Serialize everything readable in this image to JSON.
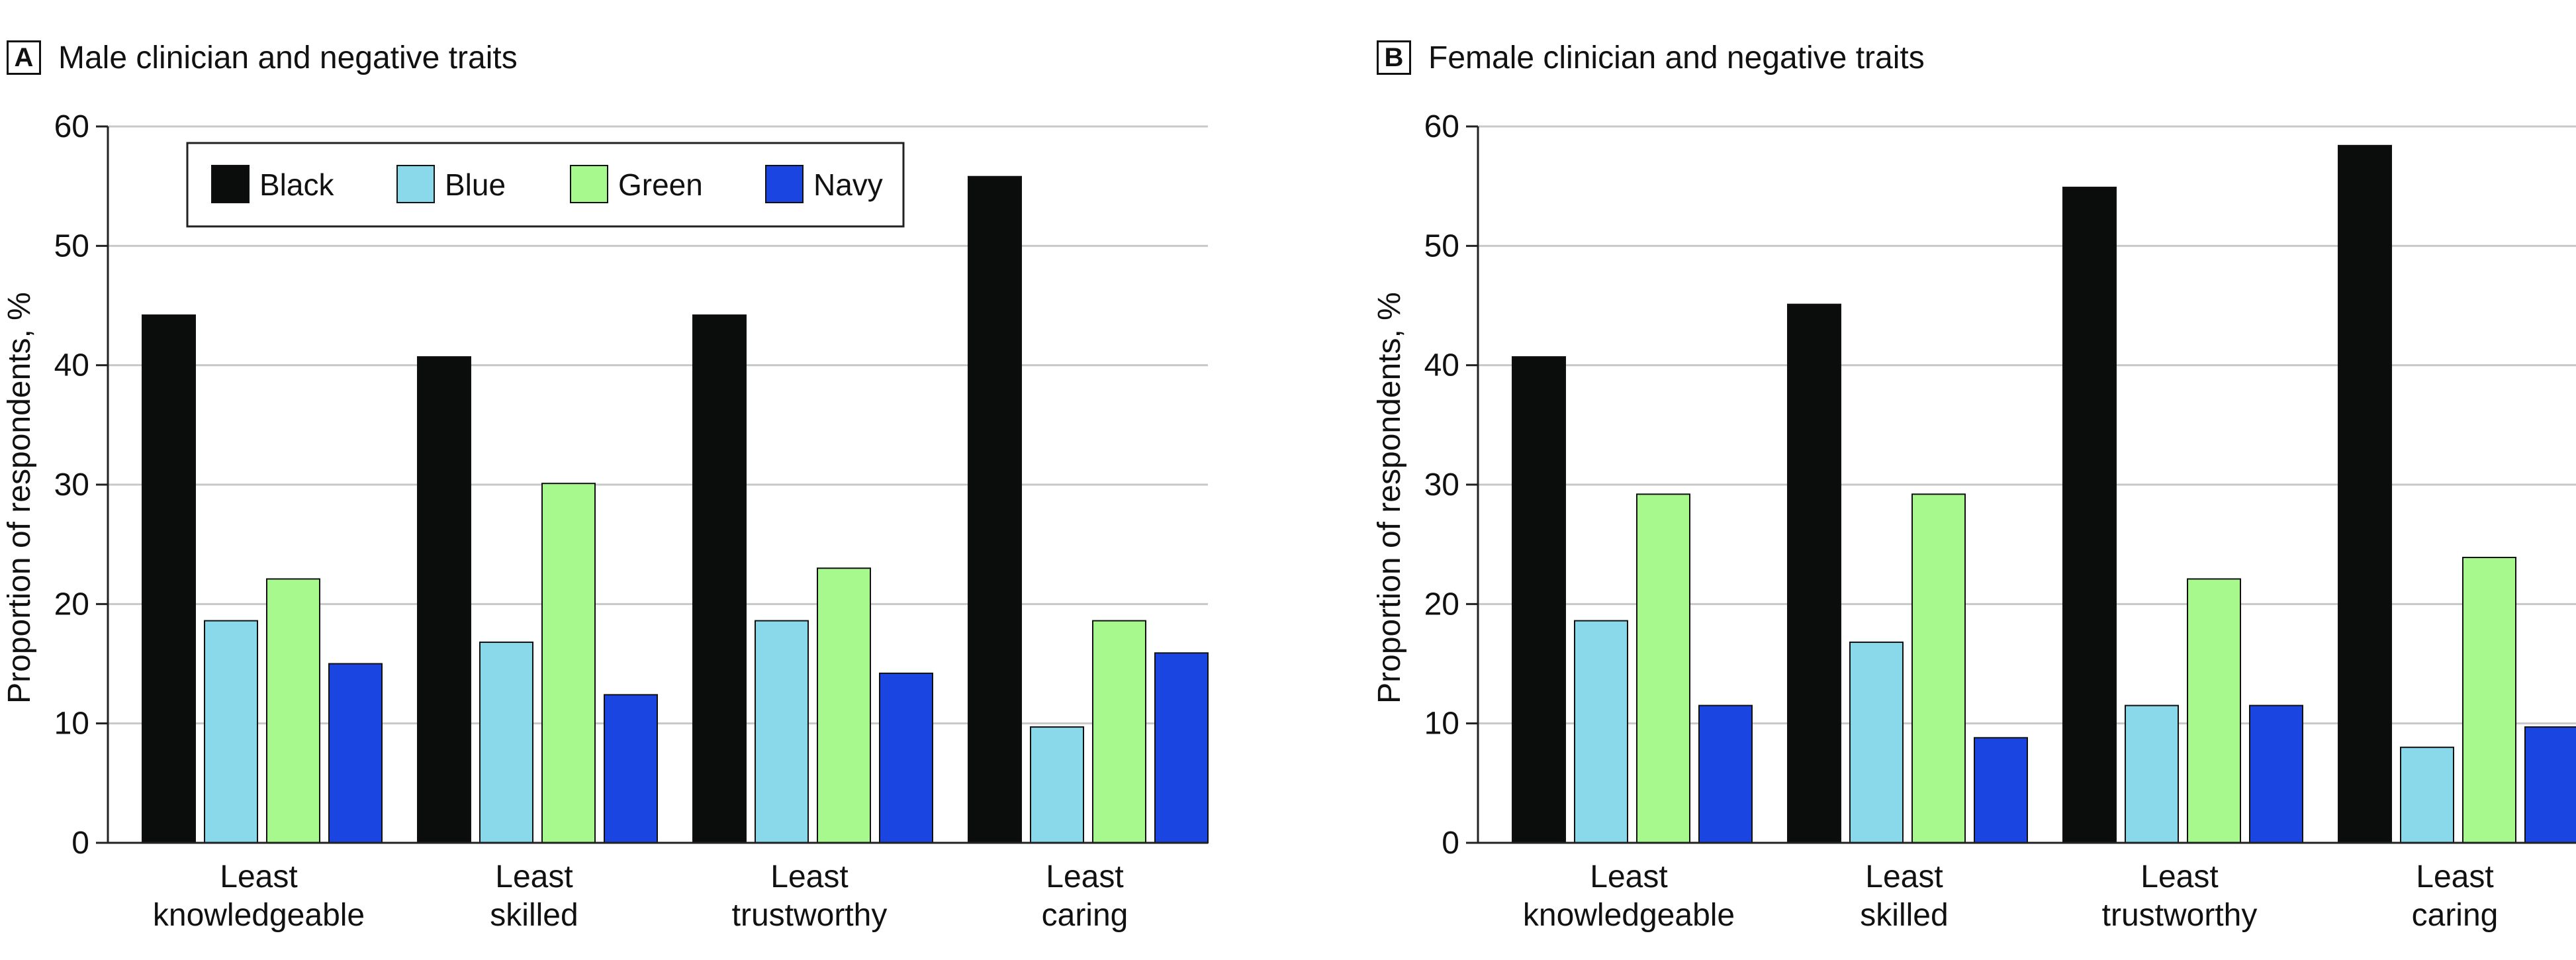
{
  "chart_data": [
    {
      "type": "bar",
      "panel_letter": "A",
      "title": "Male clinician and negative traits",
      "ylabel": "Proportion of respondents, %",
      "xlabel": "",
      "ylim": [
        0,
        60
      ],
      "yticks": [
        0,
        10,
        20,
        30,
        40,
        50,
        60
      ],
      "grid": true,
      "legend": "top-left",
      "categories": [
        [
          "Least",
          "knowledgeable"
        ],
        [
          "Least",
          "skilled"
        ],
        [
          "Least",
          "trustworthy"
        ],
        [
          "Least",
          "caring"
        ]
      ],
      "series": [
        {
          "name": "Black",
          "color": "#0b0d0c",
          "values": [
            44.2,
            40.7,
            44.2,
            55.8
          ]
        },
        {
          "name": "Blue",
          "color": "#8ad9ea",
          "values": [
            18.6,
            16.8,
            18.6,
            9.7
          ]
        },
        {
          "name": "Green",
          "color": "#a8f98d",
          "values": [
            22.1,
            30.1,
            23.0,
            18.6
          ]
        },
        {
          "name": "Navy",
          "color": "#1b45e0",
          "values": [
            15.0,
            12.4,
            14.2,
            15.9
          ]
        }
      ]
    },
    {
      "type": "bar",
      "panel_letter": "B",
      "title": "Female clinician and negative traits",
      "ylabel": "Proportion of respondents, %",
      "xlabel": "",
      "ylim": [
        0,
        60
      ],
      "yticks": [
        0,
        10,
        20,
        30,
        40,
        50,
        60
      ],
      "grid": true,
      "legend": "none",
      "categories": [
        [
          "Least",
          "knowledgeable"
        ],
        [
          "Least",
          "skilled"
        ],
        [
          "Least",
          "trustworthy"
        ],
        [
          "Least",
          "caring"
        ]
      ],
      "series": [
        {
          "name": "Black",
          "color": "#0b0d0c",
          "values": [
            40.7,
            45.1,
            54.9,
            58.4
          ]
        },
        {
          "name": "Blue",
          "color": "#8ad9ea",
          "values": [
            18.6,
            16.8,
            11.5,
            8.0
          ]
        },
        {
          "name": "Green",
          "color": "#a8f98d",
          "values": [
            29.2,
            29.2,
            22.1,
            23.9
          ]
        },
        {
          "name": "Navy",
          "color": "#1b45e0",
          "values": [
            11.5,
            8.8,
            11.5,
            9.7
          ]
        }
      ]
    }
  ]
}
